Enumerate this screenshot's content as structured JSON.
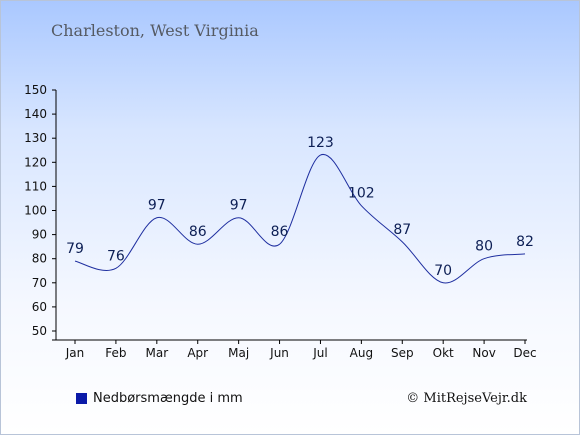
{
  "chart_data": {
    "type": "line",
    "subtitle": "Charleston, West Virginia",
    "categories": [
      "Jan",
      "Feb",
      "Mar",
      "Apr",
      "Maj",
      "Jun",
      "Jul",
      "Aug",
      "Sep",
      "Okt",
      "Nov",
      "Dec"
    ],
    "series": [
      {
        "name": "Nedbørsmængde i mm",
        "values": [
          79,
          76,
          97,
          86,
          97,
          86,
          123,
          102,
          87,
          70,
          80,
          82
        ],
        "color": "#1f2fa0"
      }
    ],
    "ylim": [
      50,
      150
    ],
    "yticks": [
      50,
      60,
      70,
      80,
      90,
      100,
      110,
      120,
      130,
      140,
      150
    ],
    "grid": false,
    "legend_position": "bottom-left"
  },
  "copyright": "© MitRejseVejr.dk",
  "colors": {
    "line": "#1f2fa0",
    "legend_swatch": "#0b1aa8",
    "axis": "#000000"
  }
}
